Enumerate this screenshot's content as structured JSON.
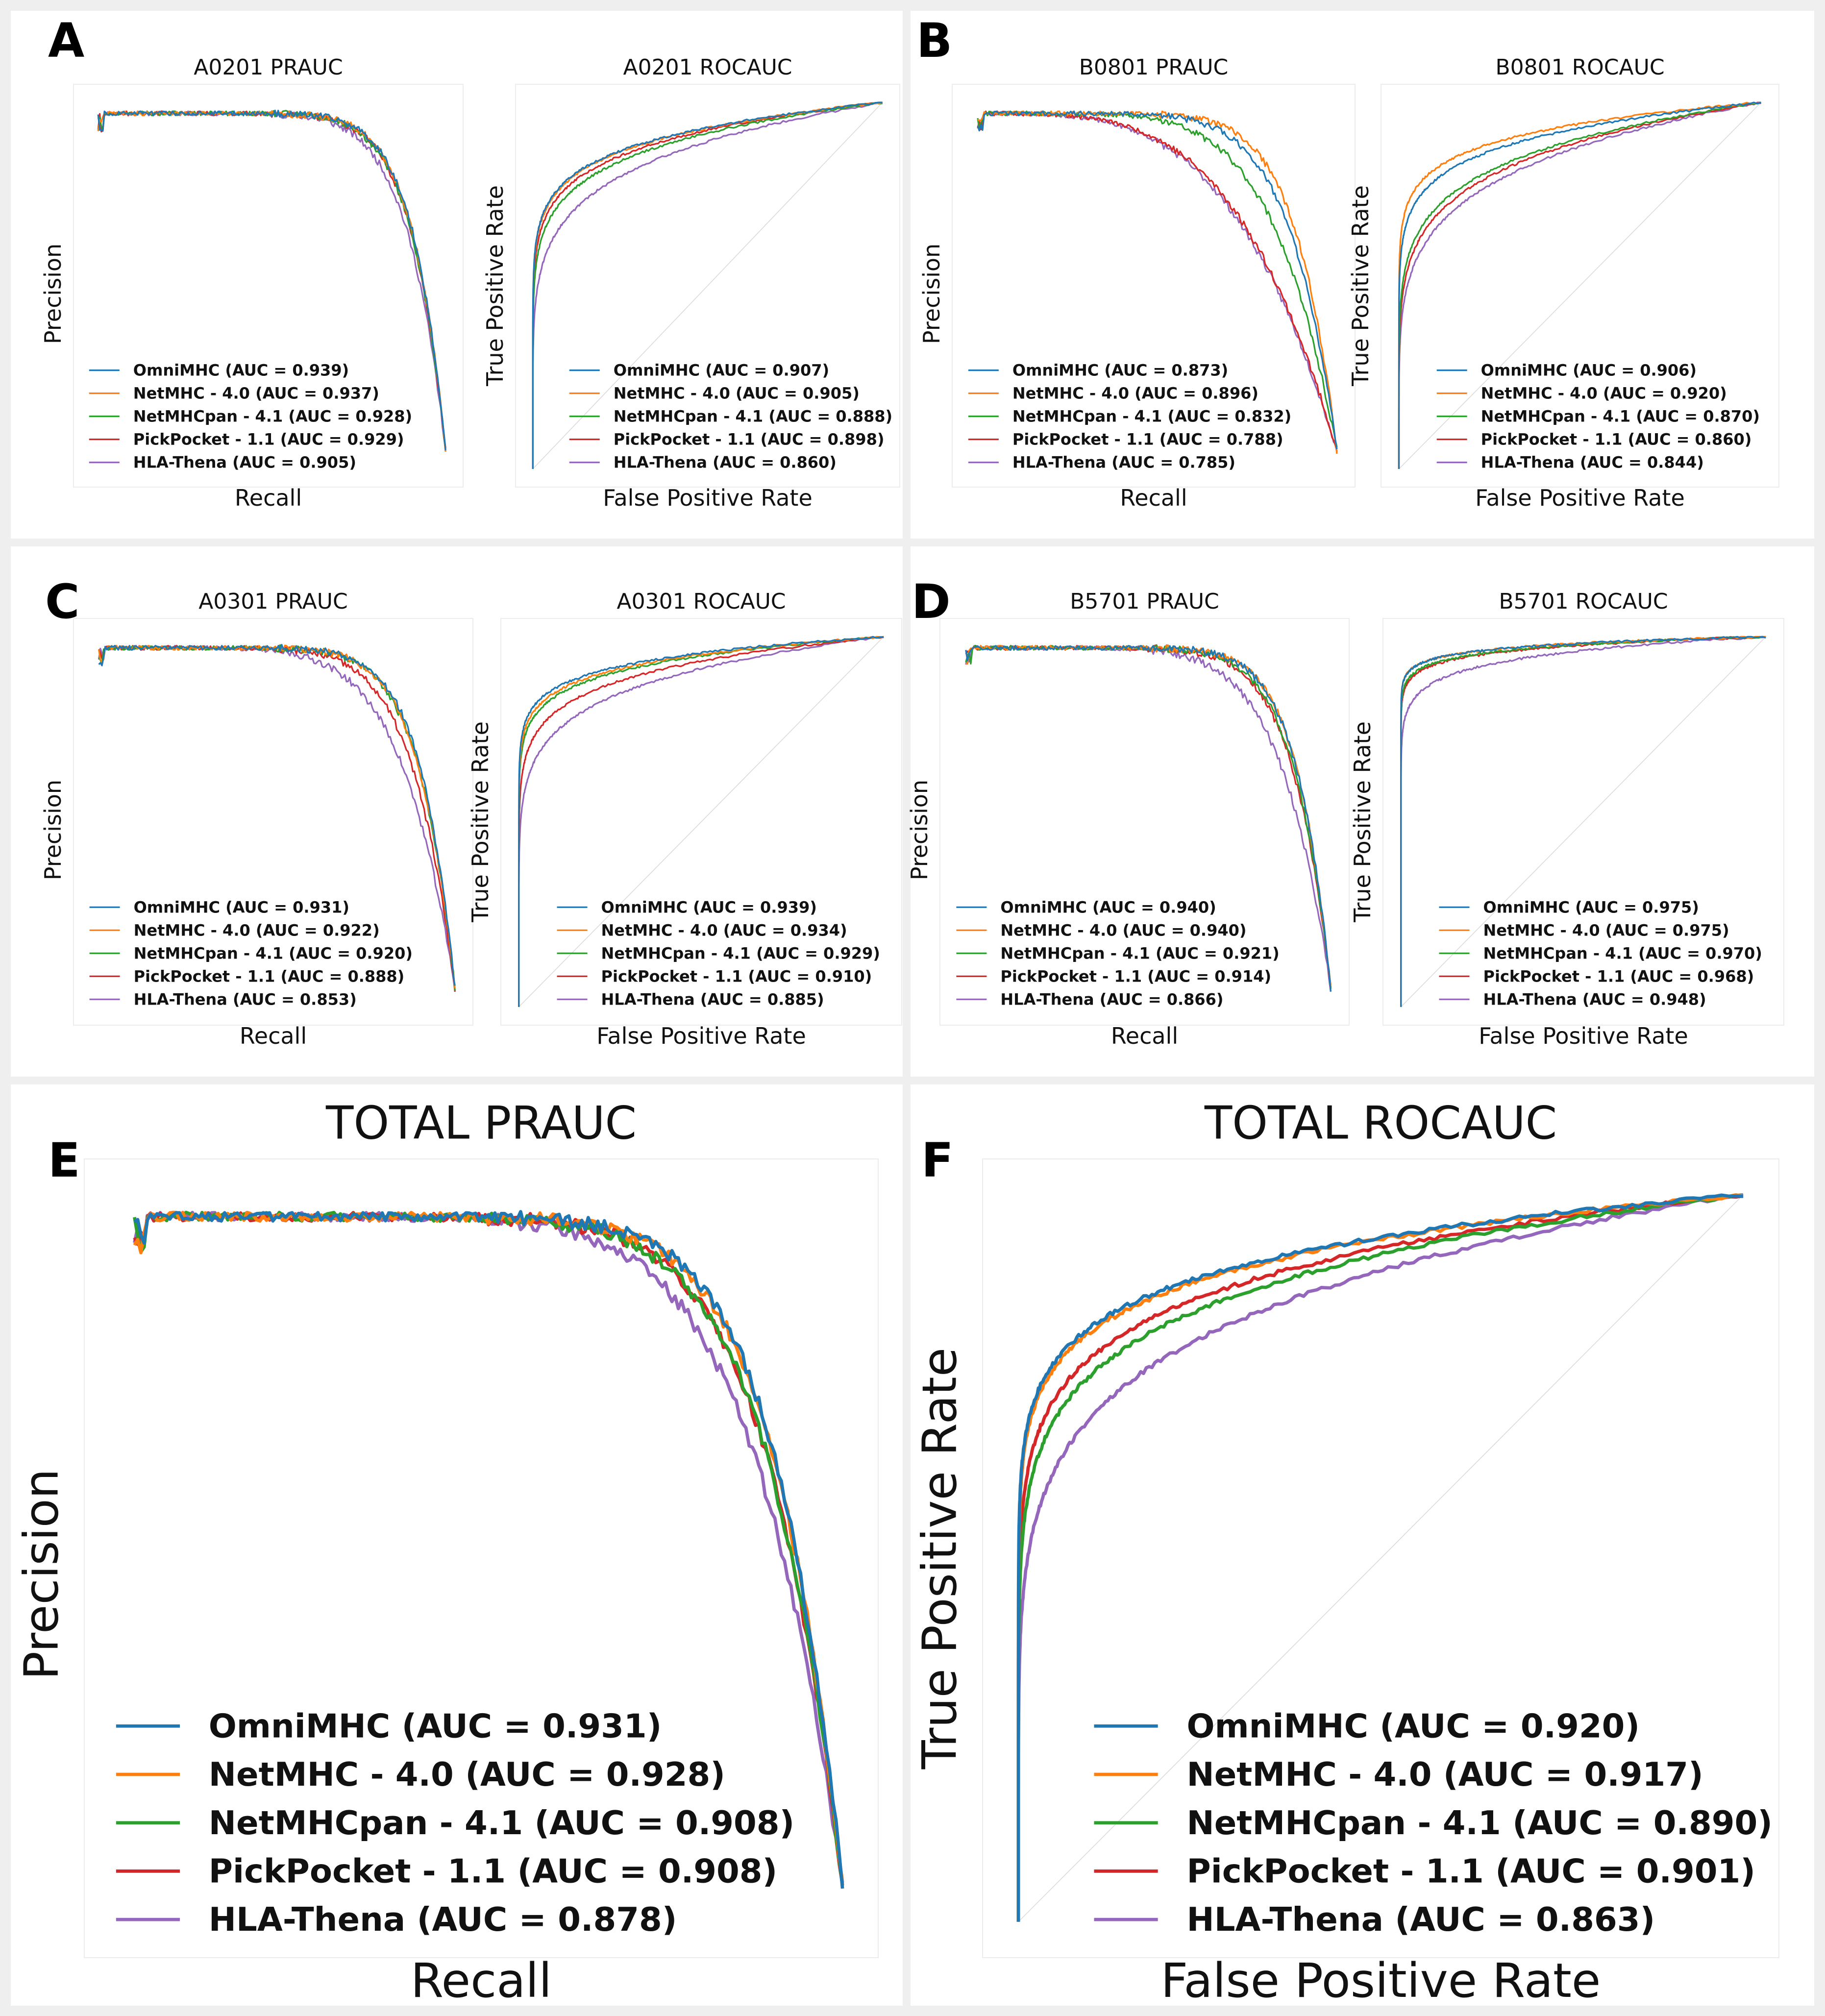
{
  "colors": {
    "OmniMHC": "#1f77b4",
    "NetMHC": "#ff7f0e",
    "NetMHCpan": "#2ca02c",
    "PickPocket": "#d62728",
    "HLAThena": "#9467bd",
    "diagonal": "#d9d9d9",
    "frame": "#ececec"
  },
  "panels": [
    {
      "letter": "A",
      "pr": {
        "title": "A0201 PRAUC",
        "xlabel": "Recall",
        "ylabel": "Precision",
        "legend": [
          "OmniMHC (AUC = 0.939)",
          "NetMHC - 4.0 (AUC = 0.937)",
          "NetMHCpan - 4.1 (AUC = 0.928)",
          "PickPocket - 1.1 (AUC = 0.929)",
          "HLA-Thena (AUC = 0.905)"
        ]
      },
      "roc": {
        "title": "A0201 ROCAUC",
        "xlabel": "False Positive Rate",
        "ylabel": "True Positive Rate",
        "legend": [
          "OmniMHC (AUC = 0.907)",
          "NetMHC - 4.0 (AUC = 0.905)",
          "NetMHCpan - 4.1 (AUC = 0.888)",
          "PickPocket - 1.1 (AUC = 0.898)",
          "HLA-Thena (AUC = 0.860)"
        ]
      }
    },
    {
      "letter": "B",
      "pr": {
        "title": "B0801 PRAUC",
        "xlabel": "Recall",
        "ylabel": "Precision",
        "legend": [
          "OmniMHC (AUC = 0.873)",
          "NetMHC - 4.0 (AUC = 0.896)",
          "NetMHCpan - 4.1 (AUC = 0.832)",
          "PickPocket - 1.1 (AUC = 0.788)",
          "HLA-Thena (AUC = 0.785)"
        ]
      },
      "roc": {
        "title": "B0801 ROCAUC",
        "xlabel": "False Positive Rate",
        "ylabel": "True Positive Rate",
        "legend": [
          "OmniMHC (AUC = 0.906)",
          "NetMHC - 4.0 (AUC = 0.920)",
          "NetMHCpan - 4.1 (AUC = 0.870)",
          "PickPocket - 1.1 (AUC = 0.860)",
          "HLA-Thena (AUC = 0.844)"
        ]
      }
    },
    {
      "letter": "C",
      "pr": {
        "title": "A0301 PRAUC",
        "xlabel": "Recall",
        "ylabel": "Precision",
        "legend": [
          "OmniMHC (AUC = 0.931)",
          "NetMHC - 4.0 (AUC = 0.922)",
          "NetMHCpan - 4.1 (AUC = 0.920)",
          "PickPocket - 1.1 (AUC = 0.888)",
          "HLA-Thena (AUC = 0.853)"
        ]
      },
      "roc": {
        "title": "A0301 ROCAUC",
        "xlabel": "False Positive Rate",
        "ylabel": "True Positive Rate",
        "legend": [
          "OmniMHC (AUC = 0.939)",
          "NetMHC - 4.0 (AUC = 0.934)",
          "NetMHCpan - 4.1 (AUC = 0.929)",
          "PickPocket - 1.1 (AUC = 0.910)",
          "HLA-Thena (AUC = 0.885)"
        ]
      }
    },
    {
      "letter": "D",
      "pr": {
        "title": "B5701 PRAUC",
        "xlabel": "Recall",
        "ylabel": "Precision",
        "legend": [
          "OmniMHC (AUC = 0.940)",
          "NetMHC - 4.0 (AUC = 0.940)",
          "NetMHCpan - 4.1 (AUC = 0.921)",
          "PickPocket - 1.1 (AUC = 0.914)",
          "HLA-Thena (AUC = 0.866)"
        ]
      },
      "roc": {
        "title": "B5701 ROCAUC",
        "xlabel": "False Positive Rate",
        "ylabel": "True Positive Rate",
        "legend": [
          "OmniMHC (AUC = 0.975)",
          "NetMHC - 4.0 (AUC = 0.975)",
          "NetMHCpan - 4.1 (AUC = 0.970)",
          "PickPocket - 1.1 (AUC = 0.968)",
          "HLA-Thena (AUC = 0.948)"
        ]
      }
    },
    {
      "letter": "E",
      "pr": {
        "title": "TOTAL PRAUC",
        "xlabel": "Recall",
        "ylabel": "Precision",
        "legend": [
          "OmniMHC (AUC = 0.931)",
          "NetMHC - 4.0 (AUC = 0.928)",
          "NetMHCpan - 4.1 (AUC = 0.908)",
          "PickPocket - 1.1 (AUC = 0.908)",
          "HLA-Thena (AUC = 0.878)"
        ]
      }
    },
    {
      "letter": "F",
      "roc": {
        "title": "TOTAL ROCAUC",
        "xlabel": "False Positive Rate",
        "ylabel": "True Positive Rate",
        "legend": [
          "OmniMHC (AUC = 0.920)",
          "NetMHC - 4.0 (AUC = 0.917)",
          "NetMHCpan - 4.1 (AUC = 0.890)",
          "PickPocket - 1.1 (AUC = 0.901)",
          "HLA-Thena (AUC = 0.863)"
        ]
      }
    }
  ],
  "chart_data": [
    {
      "type": "line",
      "panel": "A",
      "title": "A0201 PRAUC",
      "xlabel": "Recall",
      "ylabel": "Precision",
      "xlim": [
        0,
        1
      ],
      "ylim": [
        0,
        1
      ],
      "series": [
        {
          "name": "OmniMHC",
          "auc": 0.939
        },
        {
          "name": "NetMHC - 4.0",
          "auc": 0.937
        },
        {
          "name": "NetMHCpan - 4.1",
          "auc": 0.928
        },
        {
          "name": "PickPocket - 1.1",
          "auc": 0.929
        },
        {
          "name": "HLA-Thena",
          "auc": 0.905
        }
      ]
    },
    {
      "type": "line",
      "panel": "A",
      "title": "A0201 ROCAUC",
      "xlabel": "False Positive Rate",
      "ylabel": "True Positive Rate",
      "xlim": [
        0,
        1
      ],
      "ylim": [
        0,
        1
      ],
      "series": [
        {
          "name": "OmniMHC",
          "auc": 0.907
        },
        {
          "name": "NetMHC - 4.0",
          "auc": 0.905
        },
        {
          "name": "NetMHCpan - 4.1",
          "auc": 0.888
        },
        {
          "name": "PickPocket - 1.1",
          "auc": 0.898
        },
        {
          "name": "HLA-Thena",
          "auc": 0.86
        }
      ]
    },
    {
      "type": "line",
      "panel": "B",
      "title": "B0801 PRAUC",
      "xlabel": "Recall",
      "ylabel": "Precision",
      "xlim": [
        0,
        1
      ],
      "ylim": [
        0,
        1
      ],
      "series": [
        {
          "name": "OmniMHC",
          "auc": 0.873
        },
        {
          "name": "NetMHC - 4.0",
          "auc": 0.896
        },
        {
          "name": "NetMHCpan - 4.1",
          "auc": 0.832
        },
        {
          "name": "PickPocket - 1.1",
          "auc": 0.788
        },
        {
          "name": "HLA-Thena",
          "auc": 0.785
        }
      ]
    },
    {
      "type": "line",
      "panel": "B",
      "title": "B0801 ROCAUC",
      "xlabel": "False Positive Rate",
      "ylabel": "True Positive Rate",
      "xlim": [
        0,
        1
      ],
      "ylim": [
        0,
        1
      ],
      "series": [
        {
          "name": "OmniMHC",
          "auc": 0.906
        },
        {
          "name": "NetMHC - 4.0",
          "auc": 0.92
        },
        {
          "name": "NetMHCpan - 4.1",
          "auc": 0.87
        },
        {
          "name": "PickPocket - 1.1",
          "auc": 0.86
        },
        {
          "name": "HLA-Thena",
          "auc": 0.844
        }
      ]
    },
    {
      "type": "line",
      "panel": "C",
      "title": "A0301 PRAUC",
      "xlabel": "Recall",
      "ylabel": "Precision",
      "xlim": [
        0,
        1
      ],
      "ylim": [
        0,
        1
      ],
      "series": [
        {
          "name": "OmniMHC",
          "auc": 0.931
        },
        {
          "name": "NetMHC - 4.0",
          "auc": 0.922
        },
        {
          "name": "NetMHCpan - 4.1",
          "auc": 0.92
        },
        {
          "name": "PickPocket - 1.1",
          "auc": 0.888
        },
        {
          "name": "HLA-Thena",
          "auc": 0.853
        }
      ]
    },
    {
      "type": "line",
      "panel": "C",
      "title": "A0301 ROCAUC",
      "xlabel": "False Positive Rate",
      "ylabel": "True Positive Rate",
      "xlim": [
        0,
        1
      ],
      "ylim": [
        0,
        1
      ],
      "series": [
        {
          "name": "OmniMHC",
          "auc": 0.939
        },
        {
          "name": "NetMHC - 4.0",
          "auc": 0.934
        },
        {
          "name": "NetMHCpan - 4.1",
          "auc": 0.929
        },
        {
          "name": "PickPocket - 1.1",
          "auc": 0.91
        },
        {
          "name": "HLA-Thena",
          "auc": 0.885
        }
      ]
    },
    {
      "type": "line",
      "panel": "D",
      "title": "B5701 PRAUC",
      "xlabel": "Recall",
      "ylabel": "Precision",
      "xlim": [
        0,
        1
      ],
      "ylim": [
        0,
        1
      ],
      "series": [
        {
          "name": "OmniMHC",
          "auc": 0.94
        },
        {
          "name": "NetMHC - 4.0",
          "auc": 0.94
        },
        {
          "name": "NetMHCpan - 4.1",
          "auc": 0.921
        },
        {
          "name": "PickPocket - 1.1",
          "auc": 0.914
        },
        {
          "name": "HLA-Thena",
          "auc": 0.866
        }
      ]
    },
    {
      "type": "line",
      "panel": "D",
      "title": "B5701 ROCAUC",
      "xlabel": "False Positive Rate",
      "ylabel": "True Positive Rate",
      "xlim": [
        0,
        1
      ],
      "ylim": [
        0,
        1
      ],
      "series": [
        {
          "name": "OmniMHC",
          "auc": 0.975
        },
        {
          "name": "NetMHC - 4.0",
          "auc": 0.975
        },
        {
          "name": "NetMHCpan - 4.1",
          "auc": 0.97
        },
        {
          "name": "PickPocket - 1.1",
          "auc": 0.968
        },
        {
          "name": "HLA-Thena",
          "auc": 0.948
        }
      ]
    },
    {
      "type": "line",
      "panel": "E",
      "title": "TOTAL PRAUC",
      "xlabel": "Recall",
      "ylabel": "Precision",
      "xlim": [
        0,
        1
      ],
      "ylim": [
        0,
        1
      ],
      "series": [
        {
          "name": "OmniMHC",
          "auc": 0.931
        },
        {
          "name": "NetMHC - 4.0",
          "auc": 0.928
        },
        {
          "name": "NetMHCpan - 4.1",
          "auc": 0.908
        },
        {
          "name": "PickPocket - 1.1",
          "auc": 0.908
        },
        {
          "name": "HLA-Thena",
          "auc": 0.878
        }
      ]
    },
    {
      "type": "line",
      "panel": "F",
      "title": "TOTAL ROCAUC",
      "xlabel": "False Positive Rate",
      "ylabel": "True Positive Rate",
      "xlim": [
        0,
        1
      ],
      "ylim": [
        0,
        1
      ],
      "series": [
        {
          "name": "OmniMHC",
          "auc": 0.92
        },
        {
          "name": "NetMHC - 4.0",
          "auc": 0.917
        },
        {
          "name": "NetMHCpan - 4.1",
          "auc": 0.89
        },
        {
          "name": "PickPocket - 1.1",
          "auc": 0.901
        },
        {
          "name": "HLA-Thena",
          "auc": 0.863
        }
      ]
    }
  ]
}
